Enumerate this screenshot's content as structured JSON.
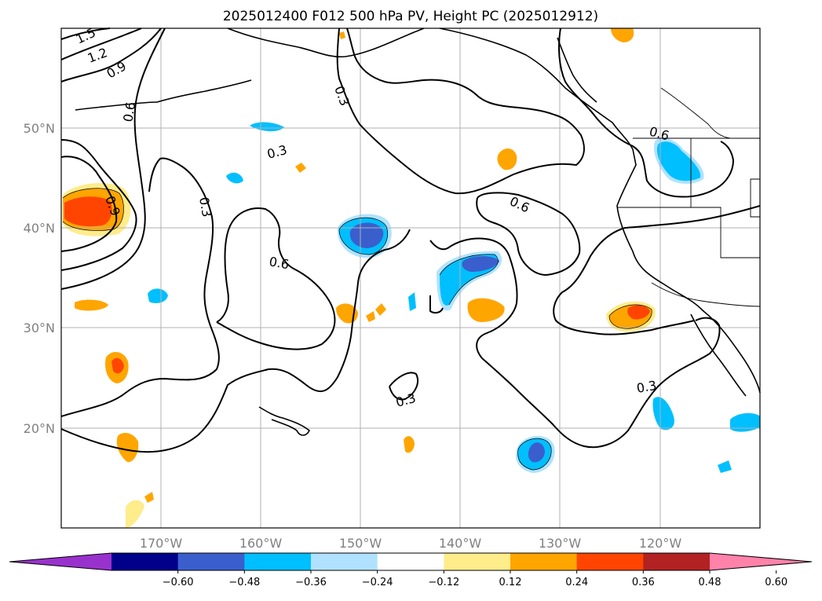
{
  "title": "2025012400 F012 500 hPa PV, Height PC (2025012912)",
  "lat_ticks": [
    {
      "label": "50°N"
    },
    {
      "label": "40°N"
    },
    {
      "label": "30°N"
    },
    {
      "label": "20°N"
    }
  ],
  "lon_ticks": [
    {
      "label": "170°W"
    },
    {
      "label": "160°W"
    },
    {
      "label": "150°W"
    },
    {
      "label": "140°W"
    },
    {
      "label": "130°W"
    },
    {
      "label": "120°W"
    }
  ],
  "contour_labels": {
    "l15": "1.5",
    "l12": "1.2",
    "l09a": "0.9",
    "l06a": "0.6",
    "l03a": "0.3",
    "l03b": "0.3",
    "l03c": "0.3",
    "l06b": "0.6",
    "l06c": "0.6",
    "l09b": "0.9",
    "l06d": "0.6",
    "l03d": "0.3",
    "l03e": "0.3"
  },
  "colorbar": {
    "colors": [
      "#9932cc",
      "#00008b",
      "#3a5fcd",
      "#00bfff",
      "#b0e2ff",
      "#ffffff",
      "#ffec8b",
      "#ffa500",
      "#ff4500",
      "#b22222",
      "#ff82ab"
    ],
    "ticks": [
      "−0.60",
      "−0.48",
      "−0.36",
      "−0.24",
      "−0.12",
      "0.12",
      "0.24",
      "0.36",
      "0.48",
      "0.60"
    ]
  },
  "chart_data": {
    "type": "heatmap",
    "title": "2025012400 F012 500 hPa PV, Height PC (2025012912)",
    "fields": [
      "500 hPa PV (shaded)",
      "Height PC (contours)"
    ],
    "contour_levels": [
      0.3,
      0.6,
      0.9,
      1.2,
      1.5
    ],
    "colorbar_levels": [
      -0.6,
      -0.48,
      -0.36,
      -0.24,
      -0.12,
      0.12,
      0.24,
      0.36,
      0.48,
      0.6
    ],
    "lon_range": [
      "180°W",
      "110°W"
    ],
    "lat_range": [
      "10°N",
      "60°N"
    ],
    "grid": true
  }
}
